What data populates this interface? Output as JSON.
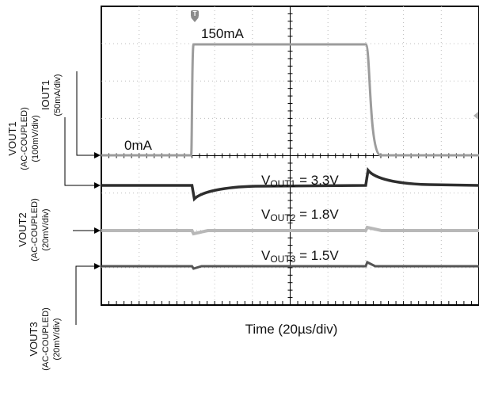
{
  "chart_data": {
    "type": "line",
    "title": "",
    "xlabel": "Time (20µs/div)",
    "x_divisions": 10,
    "y_divisions": 8,
    "grid": true,
    "channel_labels": [
      {
        "main": "IOUT1",
        "sub": "(50mA/div)"
      },
      {
        "main": "VOUT1",
        "sub": "(AC-COUPLED)",
        "sub2": "(100mV/div)"
      },
      {
        "main": "VOUT2",
        "sub": "(AC-COUPLED)",
        "sub2": "(20mV/div)"
      },
      {
        "main": "VOUT3",
        "sub": "(AC-COUPLED)",
        "sub2": "(20mV/div)"
      }
    ],
    "annotations": {
      "i_high": "150mA",
      "i_low": "0mA",
      "vout1_prefix": "V",
      "vout1_sub": "OUT1",
      "vout1_value": " = 3.3V",
      "vout2_prefix": "V",
      "vout2_sub": "OUT2",
      "vout2_value": " = 1.8V",
      "vout3_prefix": "V",
      "vout3_sub": "OUT3",
      "vout3_value": " = 1.5V"
    },
    "step": {
      "rise_div": 2.4,
      "fall_div": 7.0
    },
    "series": [
      {
        "name": "IOUT1",
        "low": 0,
        "high": 150,
        "unit": "mA",
        "color": "#9c9c9c"
      },
      {
        "name": "VOUT1",
        "nominal": 3.3,
        "unit": "V",
        "color": "#2e2e2e"
      },
      {
        "name": "VOUT2",
        "nominal": 1.8,
        "unit": "V",
        "color": "#b8b8b8"
      },
      {
        "name": "VOUT3",
        "nominal": 1.5,
        "unit": "V",
        "color": "#555555"
      }
    ]
  }
}
